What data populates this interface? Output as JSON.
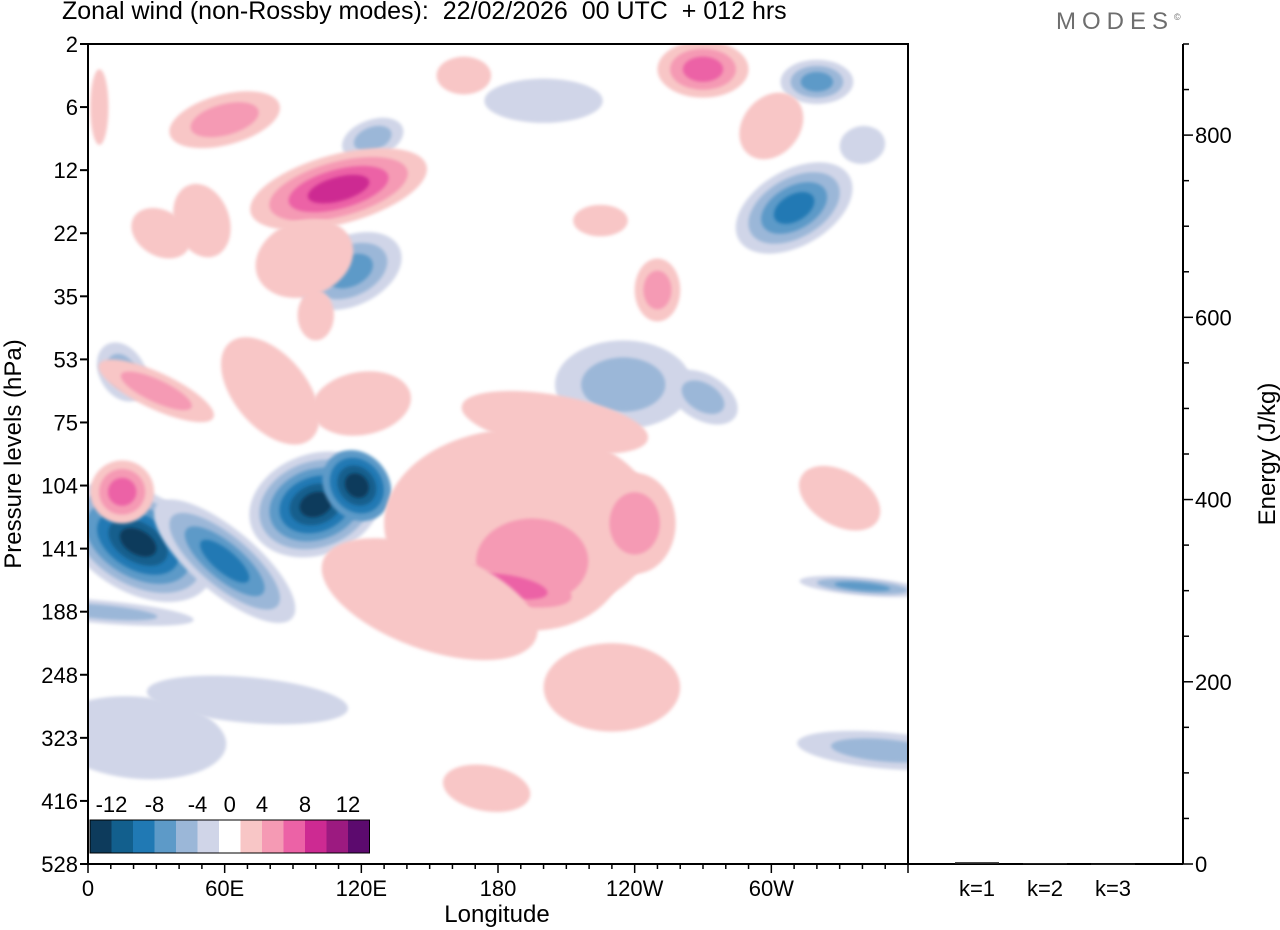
{
  "header": {
    "title": "Zonal wind (non-Rossby modes):  22/02/2026  00 UTC  + 012 hrs",
    "brand": "MODES",
    "brand_mark": "©"
  },
  "chart_data": [
    {
      "type": "heatmap",
      "title": "Zonal wind (non-Rossby modes)",
      "xlabel": "Longitude",
      "ylabel": "Pressure levels (hPa)",
      "x_tick_labels": [
        "0",
        "60E",
        "120E",
        "180",
        "120W",
        "60W"
      ],
      "x_ticks_deg": [
        0,
        60,
        120,
        180,
        240,
        300
      ],
      "xlim_deg": [
        0,
        360
      ],
      "y_tick_labels": [
        "2",
        "6",
        "12",
        "22",
        "35",
        "53",
        "75",
        "104",
        "141",
        "188",
        "248",
        "323",
        "416",
        "528"
      ],
      "colorbar": {
        "labels": [
          "-12",
          "-8",
          "-4",
          "0",
          "4",
          "8",
          "12"
        ],
        "levels": [
          -14,
          -12,
          -10,
          -8,
          -6,
          -4,
          -2,
          2,
          4,
          6,
          8,
          10,
          12,
          14
        ],
        "colors": [
          "#0d3b5c",
          "#125f8d",
          "#2079b4",
          "#5d9ac8",
          "#9bb7d8",
          "#d0d5e8",
          "#ffffff",
          "#f8c6c6",
          "#f59ab4",
          "#ec62a6",
          "#cd2a92",
          "#9c1a80",
          "#5c0a6e"
        ]
      },
      "features": [
        {
          "sign": "negative",
          "lon": 20,
          "level": "141",
          "peak": -12
        },
        {
          "sign": "negative",
          "lon": 100,
          "level": "104",
          "peak": -12
        },
        {
          "sign": "negative",
          "lon": 130,
          "level": "22",
          "peak": -6
        },
        {
          "sign": "negative",
          "lon": 320,
          "level": "22",
          "peak": -8
        },
        {
          "sign": "positive",
          "lon": 190,
          "level": "141",
          "peak": 8
        },
        {
          "sign": "positive",
          "lon": 125,
          "level": "12",
          "peak": 8
        },
        {
          "sign": "positive",
          "lon": 265,
          "level": "2",
          "peak": 8
        },
        {
          "sign": "positive",
          "lon": 10,
          "level": "75",
          "peak": 6
        }
      ]
    },
    {
      "type": "bar",
      "title": "",
      "categories": [
        "k=1",
        "k=2",
        "k=3"
      ],
      "values": [
        2,
        1,
        0.5
      ],
      "ylabel": "Energy (J/kg)",
      "ylim": [
        0,
        900
      ],
      "y_ticks": [
        0,
        200,
        400,
        600,
        800
      ]
    }
  ]
}
